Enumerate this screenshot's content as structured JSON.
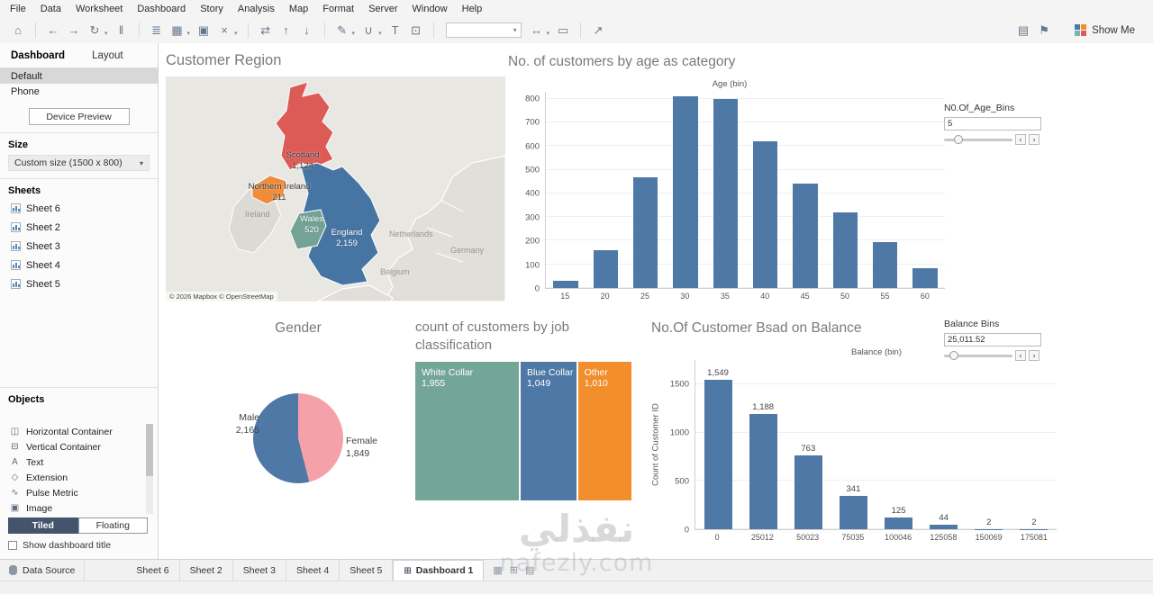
{
  "menubar": {
    "items": [
      "File",
      "Data",
      "Worksheet",
      "Dashboard",
      "Story",
      "Analysis",
      "Map",
      "Format",
      "Server",
      "Window",
      "Help"
    ]
  },
  "toolbar": {
    "show_me_label": "Show Me",
    "icons_left": [
      {
        "name": "home-icon",
        "glyph": "⌂"
      },
      {
        "sep": true
      },
      {
        "name": "undo-icon",
        "glyph": "←"
      },
      {
        "name": "redo-icon",
        "glyph": "→"
      },
      {
        "name": "refresh-icon",
        "glyph": "↻",
        "caret": true
      },
      {
        "name": "pause-updates-icon",
        "glyph": "‖"
      },
      {
        "sep": true
      },
      {
        "name": "new-data-source-icon",
        "glyph": "≣"
      },
      {
        "name": "new-worksheet-icon",
        "glyph": "▦",
        "caret": true
      },
      {
        "name": "duplicate-sheet-icon",
        "glyph": "▣"
      },
      {
        "name": "clear-sheet-icon",
        "glyph": "×",
        "caret": true
      },
      {
        "sep": true
      },
      {
        "name": "swap-axes-icon",
        "glyph": "⇄"
      },
      {
        "name": "sort-ascending-icon",
        "glyph": "↑"
      },
      {
        "name": "sort-descending-icon",
        "glyph": "↓"
      },
      {
        "sep": true
      },
      {
        "name": "highlight-icon",
        "glyph": "✎",
        "caret": true
      },
      {
        "name": "group-members-icon",
        "glyph": "∪",
        "caret": true
      },
      {
        "name": "show-mark-labels-icon",
        "glyph": "T"
      },
      {
        "name": "fix-axes-icon",
        "glyph": "⊡"
      },
      {
        "sep": true
      },
      {
        "name": "fit-selector-dropdown",
        "dropdown": true
      },
      {
        "name": "fit-width-icon",
        "glyph": "↔",
        "caret": true
      },
      {
        "name": "presentation-mode-icon",
        "glyph": "▭"
      },
      {
        "sep": true
      },
      {
        "name": "share-icon",
        "glyph": "↗"
      }
    ],
    "icons_right": [
      {
        "name": "tooltip-icon",
        "glyph": "▤"
      },
      {
        "name": "flag-icon",
        "glyph": "⚑"
      }
    ]
  },
  "sidebar": {
    "tab_dashboard": "Dashboard",
    "tab_layout": "Layout",
    "mode_default": "Default",
    "mode_phone": "Phone",
    "device_preview": "Device Preview",
    "size_header": "Size",
    "size_value": "Custom size (1500 x 800)",
    "sheets_header": "Sheets",
    "sheets": [
      "Sheet 6",
      "Sheet 2",
      "Sheet 3",
      "Sheet 4",
      "Sheet 5"
    ],
    "objects_header": "Objects",
    "objects": [
      {
        "label": "Horizontal Container",
        "glyph": "◫"
      },
      {
        "label": "Vertical Container",
        "glyph": "⊟"
      },
      {
        "label": "Text",
        "glyph": "A"
      },
      {
        "label": "Extension",
        "glyph": "◇"
      },
      {
        "label": "Pulse Metric",
        "glyph": "∿"
      },
      {
        "label": "Image",
        "glyph": "▣"
      }
    ],
    "tiled": "Tiled",
    "floating": "Floating",
    "show_dashboard_title": "Show dashboard title"
  },
  "map_panel": {
    "title": "Customer Region",
    "attribution": "© 2026 Mapbox © OpenStreetMap",
    "regions": [
      {
        "name": "Scotland",
        "value": "1,124",
        "color": "#dd5b57"
      },
      {
        "name": "Northern Ireland",
        "value": "211",
        "color": "#ef8c3c"
      },
      {
        "name": "Wales",
        "value": "520",
        "color": "#72a395"
      },
      {
        "name": "England",
        "value": "2,159",
        "color": "#4675a3"
      }
    ],
    "context_labels": [
      "Ireland",
      "Netherlands",
      "Germany",
      "Belgium"
    ]
  },
  "parameters": {
    "age_bins": {
      "label": "N0.Of_Age_Bins",
      "value": "5"
    },
    "balance_bins": {
      "label": "Balance Bins",
      "value": "25,011.52"
    }
  },
  "chart_data": [
    {
      "id": "age",
      "type": "bar",
      "title": "No. of customers by age as category",
      "xlabel": "Age (bin)",
      "ylabel": "",
      "categories": [
        "15",
        "20",
        "25",
        "30",
        "35",
        "40",
        "45",
        "50",
        "55",
        "60"
      ],
      "values": [
        30,
        160,
        470,
        810,
        800,
        620,
        440,
        320,
        195,
        85
      ],
      "y_ticks": [
        0,
        100,
        200,
        300,
        400,
        500,
        600,
        700,
        800
      ],
      "ylim": [
        0,
        830
      ],
      "bar_color": "#4e79a7",
      "grid": true,
      "legend": "none"
    },
    {
      "id": "gender",
      "type": "pie",
      "title": "Gender",
      "slices": [
        {
          "label": "Male",
          "display": "2,165",
          "value": 2165,
          "color": "#4e79a7"
        },
        {
          "label": "Female",
          "display": "1,849",
          "value": 1849,
          "color": "#f4a1aa"
        }
      ]
    },
    {
      "id": "job",
      "type": "treemap",
      "title": "count of customers by job classification",
      "items": [
        {
          "label": "White Collar",
          "display": "1,955",
          "value": 1955,
          "color": "#74a697"
        },
        {
          "label": "Blue Collar",
          "display": "1,049",
          "value": 1049,
          "color": "#4e79a7"
        },
        {
          "label": "Other",
          "display": "1,010",
          "value": 1010,
          "color": "#f28e2b"
        }
      ]
    },
    {
      "id": "balance",
      "type": "bar",
      "title": "No.Of Customer Bsad on Balance",
      "xlabel": "Balance (bin)",
      "ylabel": "Count of Customer ID",
      "categories": [
        "0",
        "25012",
        "50023",
        "75035",
        "100046",
        "125058",
        "150069",
        "175081"
      ],
      "values": [
        1549,
        1188,
        763,
        341,
        125,
        44,
        2,
        2
      ],
      "labels": [
        "1,549",
        "1,188",
        "763",
        "341",
        "125",
        "44",
        "2",
        "2"
      ],
      "y_ticks": [
        0,
        500,
        1000,
        1500
      ],
      "ylim": [
        0,
        1750
      ],
      "bar_color": "#4e79a7",
      "grid": true,
      "legend": "none"
    }
  ],
  "bottom": {
    "data_source": "Data Source",
    "tabs": [
      "Sheet 6",
      "Sheet 2",
      "Sheet 3",
      "Sheet 4",
      "Sheet 5",
      "Dashboard 1"
    ],
    "active_tab": "Dashboard 1"
  },
  "watermark": {
    "line1": "نفذلي",
    "line2": "nafezly.com"
  }
}
